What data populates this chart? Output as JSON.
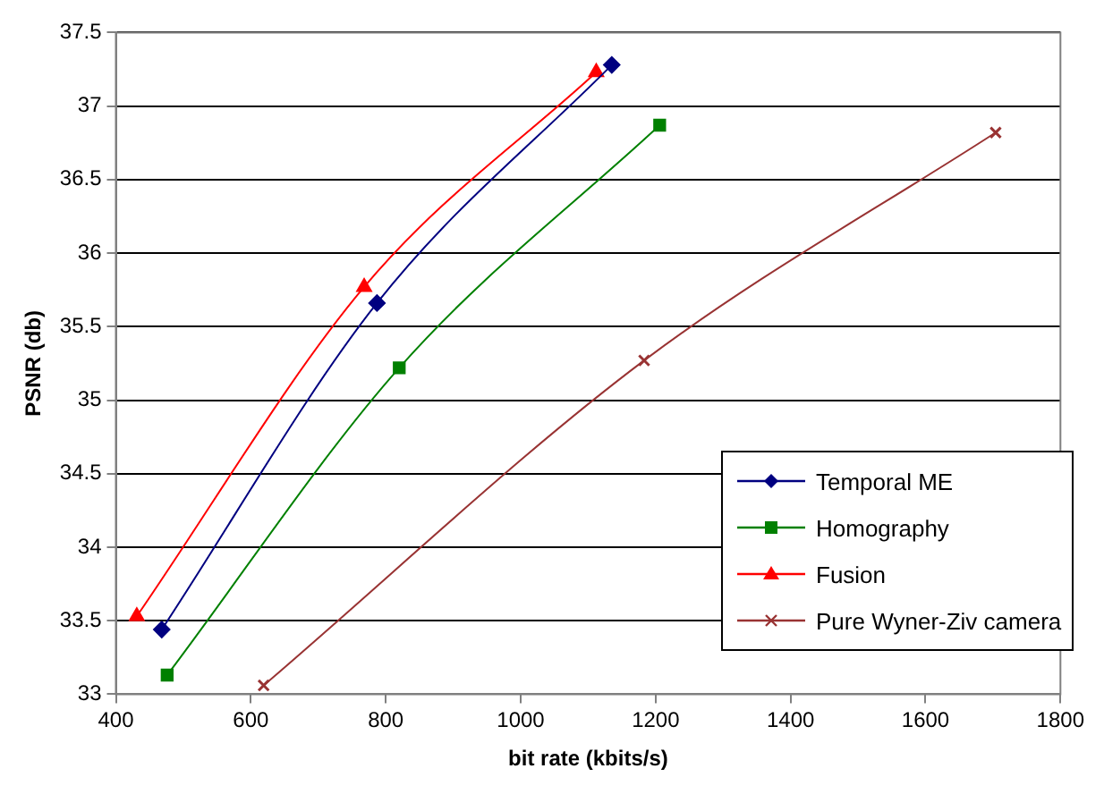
{
  "chart_data": {
    "type": "line",
    "xlabel": "bit rate (kbits/s)",
    "ylabel": "PSNR (db)",
    "xlim": [
      400,
      1800
    ],
    "xticks": [
      400,
      600,
      800,
      1000,
      1200,
      1400,
      1600,
      1800
    ],
    "ylim": [
      33,
      37.5
    ],
    "yticks": [
      33,
      33.5,
      34,
      34.5,
      35,
      35.5,
      36,
      36.5,
      37,
      37.5
    ],
    "grid": "y",
    "legend": "bottom right",
    "series": [
      {
        "name": "Temporal ME",
        "color": "#000080",
        "marker": "diamond",
        "x": [
          468,
          787,
          1135
        ],
        "values": [
          33.44,
          35.66,
          37.28
        ]
      },
      {
        "name": "Homography",
        "color": "#008000",
        "marker": "square",
        "x": [
          476,
          820,
          1206
        ],
        "values": [
          33.13,
          35.22,
          36.87
        ]
      },
      {
        "name": "Fusion",
        "color": "#ff0000",
        "marker": "triangle",
        "x": [
          431,
          768,
          1112
        ],
        "values": [
          33.53,
          35.77,
          37.23
        ]
      },
      {
        "name": "Pure Wyner-Ziv camera",
        "color": "#993333",
        "marker": "cross",
        "x": [
          619,
          1183,
          1704
        ],
        "values": [
          33.06,
          35.27,
          36.82
        ]
      }
    ]
  }
}
